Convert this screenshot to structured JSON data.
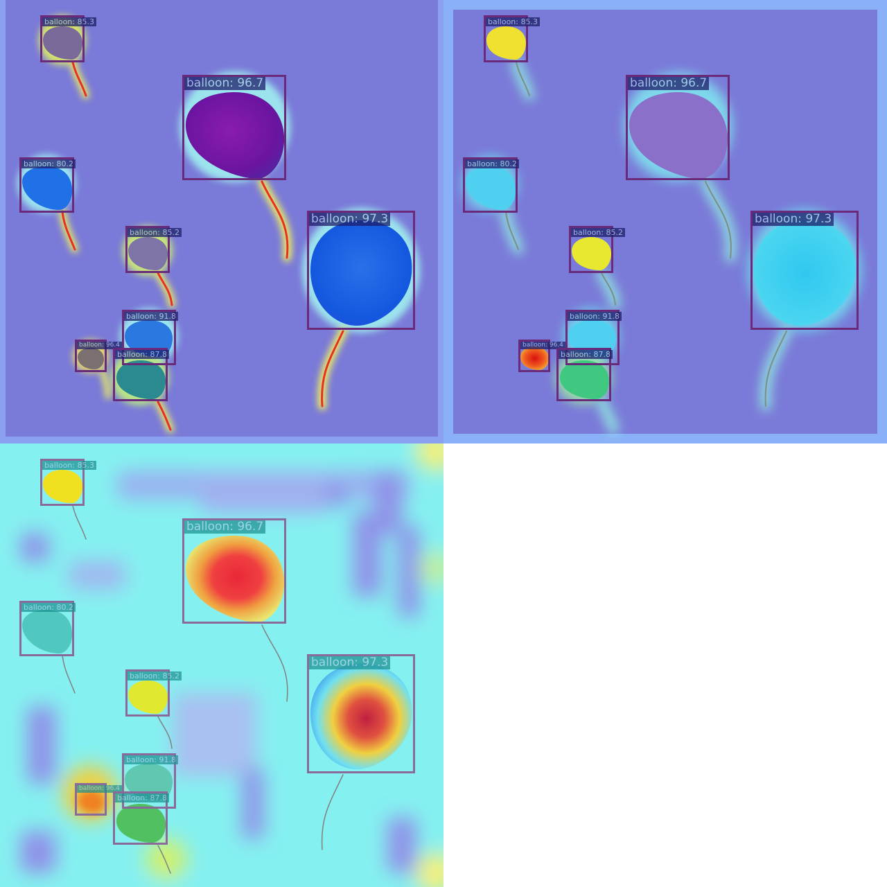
{
  "panels": [
    {
      "id": "top-left"
    },
    {
      "id": "top-right"
    },
    {
      "id": "bottom-left"
    }
  ],
  "detections": [
    {
      "label": "balloon: 85.3"
    },
    {
      "label": "balloon: 96.7"
    },
    {
      "label": "balloon: 80.2"
    },
    {
      "label": "balloon: 97.3"
    },
    {
      "label": "balloon: 85.2"
    },
    {
      "label": "balloon: 91.8"
    },
    {
      "label": "balloon: 96.4"
    },
    {
      "label": "balloon: 87.8"
    }
  ],
  "colors": {
    "background_cool": "#7a7ce0",
    "background_light": "#85f0f0",
    "box_dark": "#6a2a7a",
    "box_light": "#8a6a9a",
    "label_bg_dark": "#1e1e6a",
    "label_bg_light": "#1a8f8f",
    "heat_red": "#e82020",
    "heat_yellow": "#f5f020",
    "heat_cyan": "#30d8f0",
    "heat_blue": "#1060e8",
    "heat_purple": "#7a10a8"
  }
}
